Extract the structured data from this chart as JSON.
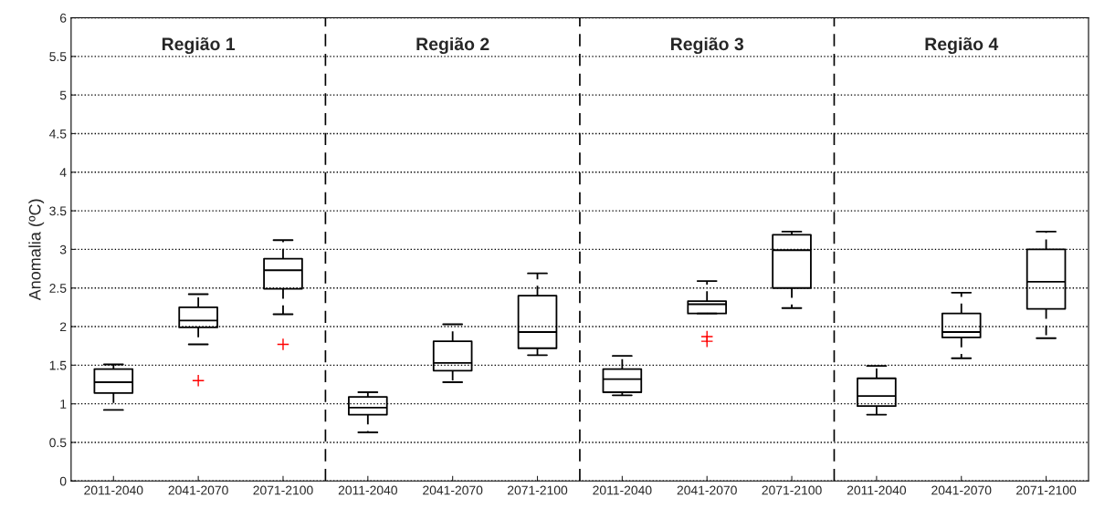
{
  "chart_data": {
    "type": "box",
    "ylabel": "Anomalia (ºC)",
    "categories": [
      "2011-2040",
      "2041-2070",
      "2071-2100",
      "2011-2040",
      "2041-2070",
      "2071-2100",
      "2011-2040",
      "2041-2070",
      "2071-2100",
      "2011-2040",
      "2041-2070",
      "2071-2100"
    ],
    "boxes": [
      {
        "low": 0.92,
        "q1": 1.14,
        "median": 1.28,
        "q3": 1.45,
        "high": 1.51
      },
      {
        "low": 1.77,
        "q1": 1.99,
        "median": 2.08,
        "q3": 2.25,
        "high": 2.42,
        "outliers": [
          1.3
        ]
      },
      {
        "low": 2.16,
        "q1": 2.49,
        "median": 2.73,
        "q3": 2.88,
        "high": 3.12,
        "outliers": [
          1.77
        ]
      },
      {
        "low": 0.63,
        "q1": 0.86,
        "median": 0.95,
        "q3": 1.09,
        "high": 1.15
      },
      {
        "low": 1.28,
        "q1": 1.43,
        "median": 1.53,
        "q3": 1.81,
        "high": 2.03
      },
      {
        "low": 1.63,
        "q1": 1.72,
        "median": 1.93,
        "q3": 2.4,
        "high": 2.69
      },
      {
        "low": 1.11,
        "q1": 1.15,
        "median": 1.32,
        "q3": 1.45,
        "high": 1.62
      },
      {
        "low": 2.17,
        "q1": 2.17,
        "median": 2.29,
        "q3": 2.33,
        "high": 2.59,
        "outliers": [
          1.87,
          1.81
        ]
      },
      {
        "low": 2.24,
        "q1": 2.5,
        "median": 2.99,
        "q3": 3.19,
        "high": 3.23
      },
      {
        "low": 0.86,
        "q1": 0.97,
        "median": 1.1,
        "q3": 1.33,
        "high": 1.49
      },
      {
        "low": 1.59,
        "q1": 1.86,
        "median": 1.93,
        "q3": 2.17,
        "high": 2.44
      },
      {
        "low": 1.85,
        "q1": 2.23,
        "median": 2.58,
        "q3": 3.0,
        "high": 3.23
      }
    ],
    "color": "#000000",
    "ylim": [
      0,
      6
    ],
    "yticks": [
      0,
      0.5,
      1,
      1.5,
      2,
      2.5,
      3,
      3.5,
      4,
      4.5,
      5,
      5.5,
      6
    ],
    "grid": "y",
    "annotations": [
      "Região 1",
      "Região 2",
      "Região 3",
      "Região 4"
    ]
  }
}
